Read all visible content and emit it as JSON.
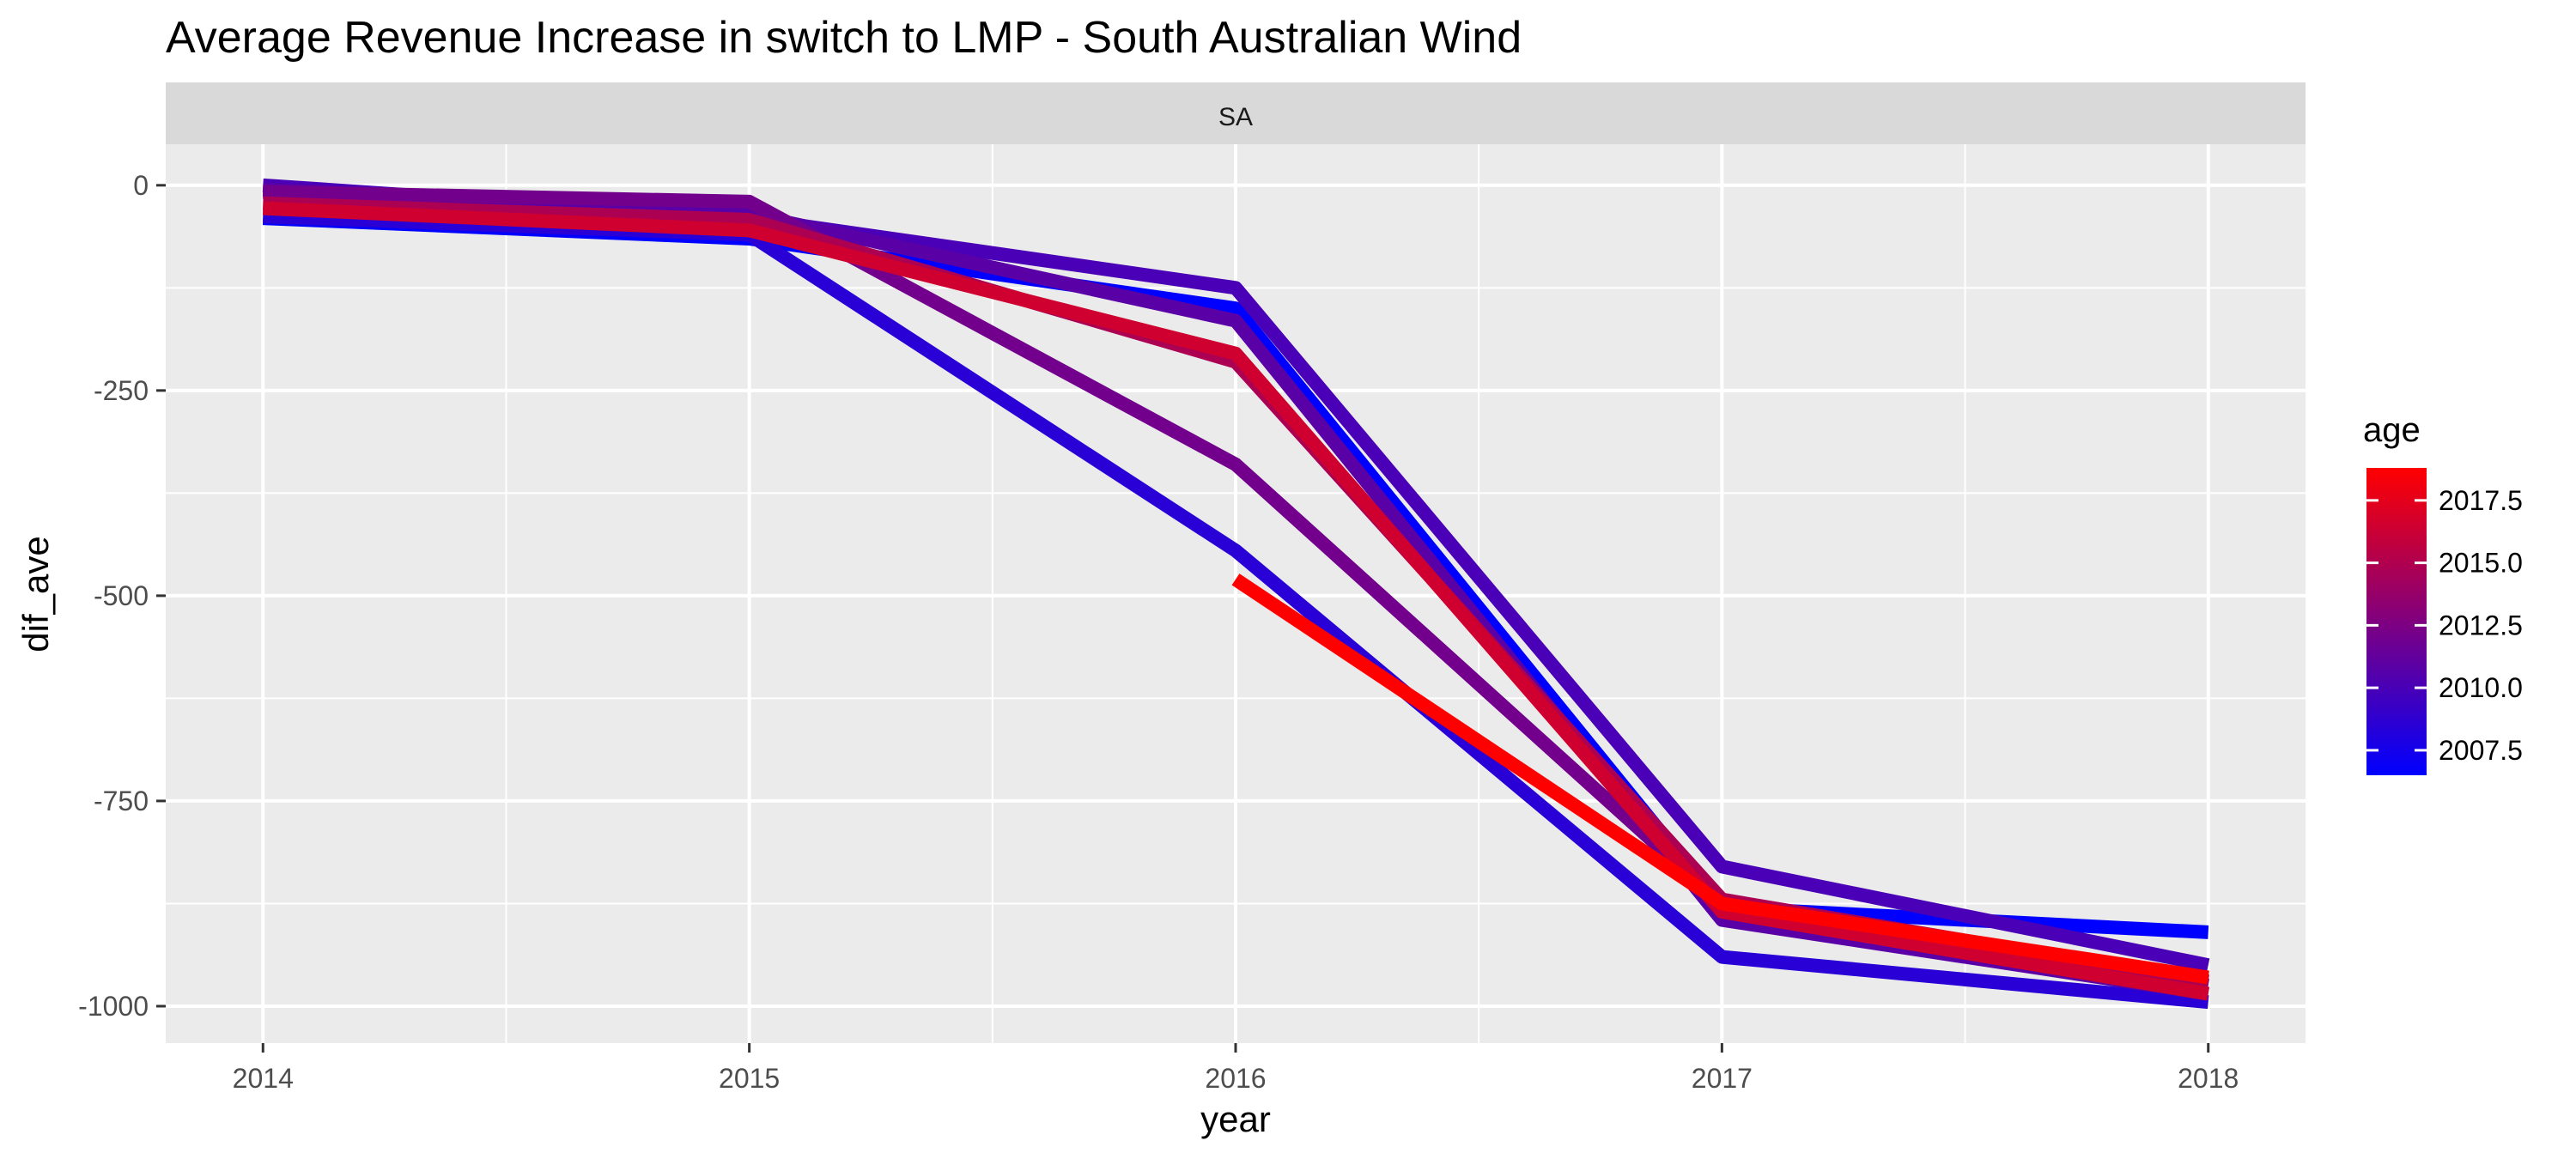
{
  "chart_data": {
    "type": "line",
    "title": "Average Revenue Increase in switch to LMP - South Australian Wind",
    "facet_label": "SA",
    "xlabel": "year",
    "ylabel": "dif_ave",
    "x_ticks": [
      2014,
      2015,
      2016,
      2017,
      2018
    ],
    "y_ticks": [
      0,
      -250,
      -500,
      -750,
      -1000
    ],
    "xlim": [
      2013.8,
      2018.2
    ],
    "ylim": [
      -1045,
      50
    ],
    "grid": true,
    "legend": {
      "title": "age",
      "placement": "right",
      "labels": [
        "2017.5",
        "2015.0",
        "2012.5",
        "2010.0",
        "2007.5"
      ],
      "label_values": [
        2017.5,
        2015.0,
        2012.5,
        2010.0,
        2007.5
      ],
      "range": [
        2006.5,
        2018.8
      ],
      "color_low": "#0000FF",
      "color_high": "#FF0000"
    },
    "series": [
      {
        "age": 2006.5,
        "x": [
          2014,
          2015,
          2016,
          2017,
          2018
        ],
        "y": [
          -40,
          -65,
          -150,
          -880,
          -910
        ]
      },
      {
        "age": 2008.5,
        "x": [
          2014,
          2015,
          2016,
          2017,
          2018
        ],
        "y": [
          -38,
          -60,
          -445,
          -940,
          -995
        ]
      },
      {
        "age": 2010.0,
        "x": [
          2014,
          2015,
          2016,
          2017,
          2018
        ],
        "y": [
          0,
          -40,
          -125,
          -830,
          -950
        ]
      },
      {
        "age": 2010.8,
        "x": [
          2014,
          2015,
          2016,
          2017,
          2018
        ],
        "y": [
          -5,
          -35,
          -165,
          -895,
          -985
        ]
      },
      {
        "age": 2012.0,
        "x": [
          2014,
          2015,
          2016,
          2017,
          2018
        ],
        "y": [
          -8,
          -20,
          -340,
          -875,
          -975
        ]
      },
      {
        "age": 2014.8,
        "x": [
          2014,
          2015,
          2016,
          2017,
          2018
        ],
        "y": [
          -22,
          -42,
          -215,
          -870,
          -970
        ]
      },
      {
        "age": 2016.5,
        "x": [
          2014,
          2015,
          2016,
          2017,
          2018
        ],
        "y": [
          -28,
          -55,
          -205,
          -885,
          -985
        ]
      },
      {
        "age": 2018.8,
        "x": [
          2016,
          2017,
          2018
        ],
        "y": [
          -480,
          -875,
          -965
        ]
      }
    ]
  },
  "colors": {
    "panel_bg": "#EBEBEB",
    "grid": "#FFFFFF",
    "strip_bg": "#D9D9D9",
    "text": "#000000",
    "tick_text": "#4D4D4D"
  }
}
